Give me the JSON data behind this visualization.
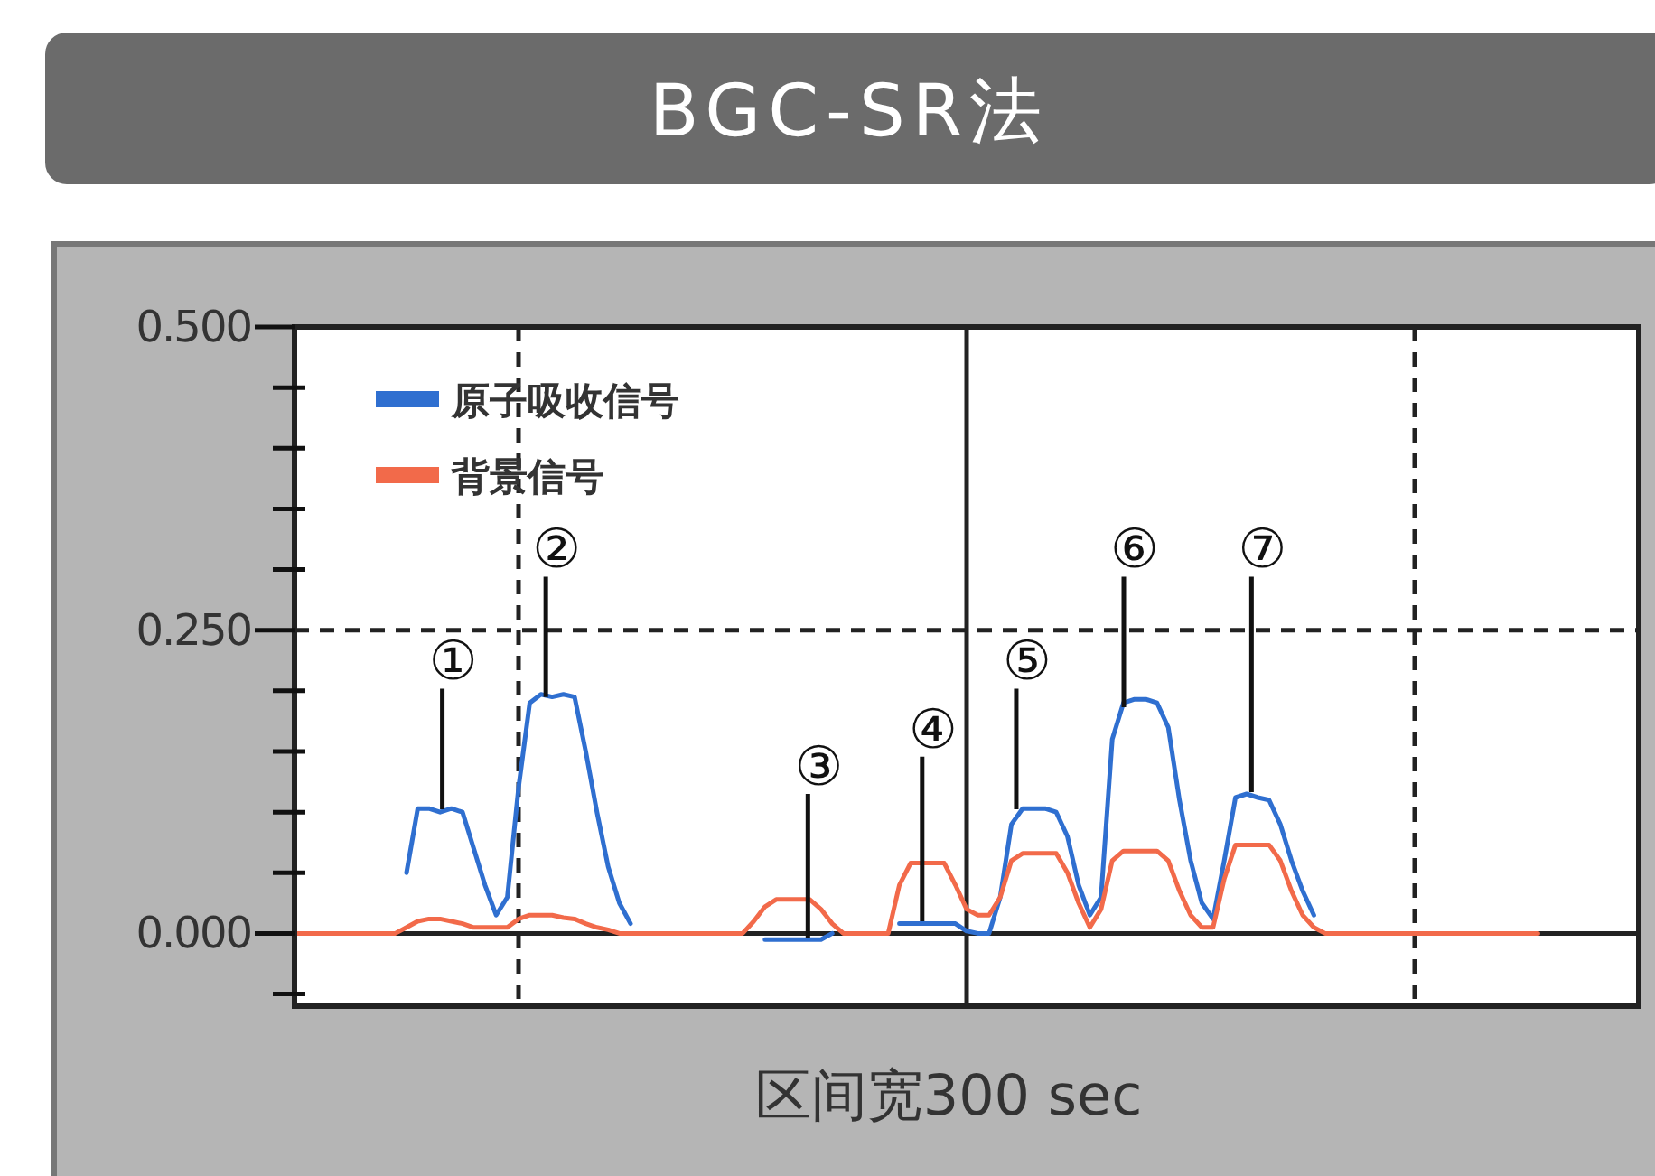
{
  "chart_data": {
    "type": "line",
    "title": "BGC-SR法",
    "xlabel": "区间宽300 sec",
    "categories": [
      null,
      null,
      null,
      null,
      null,
      null,
      null,
      null,
      null,
      null,
      null,
      null,
      null,
      null,
      null,
      null,
      null,
      null,
      null,
      null,
      null,
      null,
      null,
      null,
      null,
      null,
      null,
      null,
      null,
      null,
      null,
      null,
      null,
      null,
      null,
      null,
      null,
      null,
      null,
      null,
      null,
      null,
      null,
      null,
      null,
      null,
      null,
      null,
      null,
      null,
      null,
      null,
      null,
      null,
      null,
      null,
      null,
      null,
      null,
      null,
      null,
      null,
      null,
      null,
      null,
      null,
      null,
      null,
      null,
      null,
      null,
      null,
      null,
      null,
      null,
      null,
      null,
      null,
      null,
      null,
      null,
      null,
      null,
      null,
      null,
      null,
      null,
      null,
      null,
      null,
      null,
      null,
      null,
      null,
      null,
      null,
      null,
      null,
      null,
      null,
      null,
      null,
      null,
      null,
      null,
      null,
      null,
      null,
      null,
      null,
      null,
      null,
      null,
      null,
      null,
      null,
      null,
      null,
      null,
      null,
      null
    ],
    "series": [
      {
        "name": "原子吸收信号",
        "color": "#2f6fd0",
        "values": [
          null,
          null,
          null,
          null,
          null,
          null,
          null,
          null,
          null,
          null,
          0.05,
          0.103,
          0.103,
          0.1,
          0.103,
          0.1,
          0.07,
          0.04,
          0.015,
          0.03,
          0.12,
          0.19,
          0.197,
          0.195,
          0.197,
          0.195,
          0.15,
          0.1,
          0.055,
          0.025,
          0.008,
          null,
          null,
          null,
          null,
          null,
          null,
          null,
          null,
          null,
          null,
          null,
          -0.005,
          -0.005,
          -0.005,
          -0.005,
          -0.005,
          -0.005,
          0,
          null,
          null,
          null,
          null,
          null,
          0.008,
          0.008,
          0.008,
          0.008,
          0.008,
          0.008,
          0.002,
          0,
          0,
          0.03,
          0.09,
          0.103,
          0.103,
          0.103,
          0.1,
          0.08,
          0.04,
          0.015,
          0.03,
          0.16,
          0.19,
          0.193,
          0.193,
          0.19,
          0.17,
          0.11,
          0.06,
          0.025,
          0.012,
          0.06,
          0.112,
          0.115,
          0.112,
          0.11,
          0.09,
          0.06,
          0.035,
          0.015,
          null,
          null,
          null,
          null,
          null,
          null,
          null,
          null,
          null,
          null,
          null,
          null,
          null,
          null,
          null,
          null,
          null,
          null,
          null,
          null,
          null,
          null,
          null,
          null,
          null,
          null,
          null,
          null,
          null
        ]
      },
      {
        "name": "背景信号",
        "color": "#f26a4a",
        "values": [
          0,
          0,
          0,
          0,
          0,
          0,
          0,
          0,
          0,
          0,
          0.005,
          0.01,
          0.012,
          0.012,
          0.01,
          0.008,
          0.005,
          0.005,
          0.005,
          0.005,
          0.012,
          0.015,
          0.015,
          0.015,
          0.013,
          0.012,
          0.008,
          0.005,
          0.003,
          0,
          0,
          0,
          0,
          0,
          0,
          0,
          0,
          0,
          0,
          0,
          0,
          0.01,
          0.022,
          0.028,
          0.028,
          0.028,
          0.028,
          0.02,
          0.008,
          0,
          0,
          0,
          0,
          0,
          0.04,
          0.058,
          0.058,
          0.058,
          0.058,
          0.04,
          0.02,
          0.015,
          0.015,
          0.03,
          0.06,
          0.066,
          0.066,
          0.066,
          0.066,
          0.05,
          0.025,
          0.005,
          0.02,
          0.06,
          0.068,
          0.068,
          0.068,
          0.068,
          0.06,
          0.035,
          0.015,
          0.005,
          0.005,
          0.045,
          0.073,
          0.073,
          0.073,
          0.073,
          0.06,
          0.035,
          0.015,
          0.005,
          0,
          0,
          0,
          0,
          0,
          0,
          0,
          0,
          0,
          0,
          0,
          0,
          0,
          0,
          0,
          0,
          0,
          0,
          0,
          0,
          null,
          null,
          null,
          null,
          null,
          null,
          null,
          null,
          null
        ]
      }
    ],
    "ylim": [
      -0.06,
      0.5
    ],
    "yticks": [
      {
        "value": 0.5,
        "label": "0.500"
      },
      {
        "value": 0.25,
        "label": "0.250"
      },
      {
        "value": 0,
        "label": "0.000"
      }
    ],
    "grid": true,
    "tick_labels": "y",
    "line_style": "solid",
    "legend": "top left",
    "annotations": [
      "①",
      "②",
      "③",
      "④",
      "⑤",
      "⑥",
      "⑦"
    ]
  }
}
